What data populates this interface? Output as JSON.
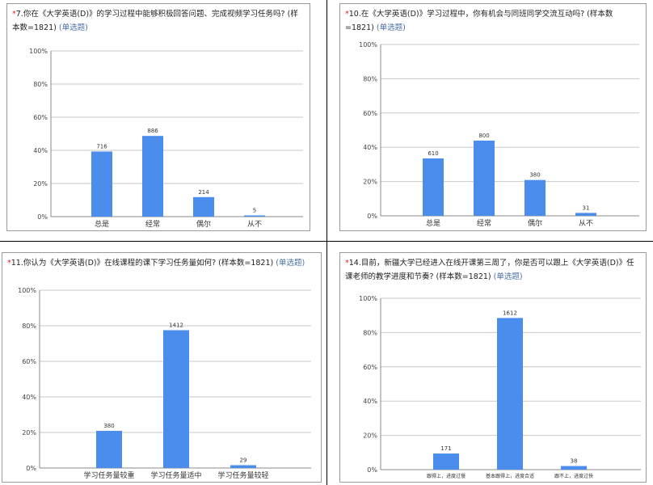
{
  "panels": [
    {
      "number": "7",
      "required": true,
      "question": ".你在《大学英语(D)》的学习过程中能够积极回答问题、完成视频学习任务吗?  (样本数=1821)",
      "type_label": "(单选题)"
    },
    {
      "number": "10",
      "required": true,
      "question": ".在《大学英语(D)》学习过程中，你有机会与同班同学交流互动吗?  (样本数=1821)",
      "type_label": "(单选题)"
    },
    {
      "number": "11",
      "required": true,
      "question": ".你认为《大学英语(D)》在线课程的课下学习任务量如何?  (样本数=1821)",
      "type_label": "(单选题)"
    },
    {
      "number": "14",
      "required": true,
      "question": ".目前，新疆大学已经进入在线开课第三周了，你是否可以跟上《大学英语(D)》任课老师的教学进度和节奏?  (样本数=1821)",
      "type_label": "(单选题)"
    }
  ],
  "chart_data": [
    {
      "type": "bar",
      "title": "",
      "categories": [
        "总是",
        "经常",
        "偶尔",
        "从不"
      ],
      "values": [
        39.3,
        48.7,
        11.8,
        0.3
      ],
      "data_labels": [
        "716",
        "886",
        "214",
        "5"
      ],
      "ylim": [
        0,
        100
      ],
      "yticks": [
        "0%",
        "20%",
        "40%",
        "60%",
        "80%",
        "100%"
      ],
      "grid": true,
      "bar_color": "#4a8ded"
    },
    {
      "type": "bar",
      "title": "",
      "categories": [
        "总是",
        "经常",
        "偶尔",
        "从不"
      ],
      "values": [
        33.5,
        43.9,
        20.9,
        1.7
      ],
      "data_labels": [
        "610",
        "800",
        "380",
        "31"
      ],
      "ylim": [
        0,
        100
      ],
      "yticks": [
        "0%",
        "20%",
        "40%",
        "60%",
        "80%",
        "100%"
      ],
      "grid": true,
      "bar_color": "#4a8ded"
    },
    {
      "type": "bar",
      "title": "",
      "categories": [
        "学习任务量较重",
        "学习任务量适中",
        "学习任务量较轻"
      ],
      "values": [
        20.9,
        77.5,
        1.6
      ],
      "data_labels": [
        "380",
        "1412",
        "29"
      ],
      "ylim": [
        0,
        100
      ],
      "yticks": [
        "0%",
        "20%",
        "40%",
        "60%",
        "80%",
        "100%"
      ],
      "grid": true,
      "bar_color": "#4a8ded"
    },
    {
      "type": "bar",
      "title": "",
      "categories": [
        "跟得上，进度过慢",
        "基本跟得上，进度合适",
        "跟不上，进度过快"
      ],
      "values": [
        9.4,
        88.5,
        2.1
      ],
      "data_labels": [
        "171",
        "1612",
        "38"
      ],
      "ylim": [
        0,
        100
      ],
      "yticks": [
        "0%",
        "20%",
        "40%",
        "60%",
        "80%",
        "100%"
      ],
      "grid": true,
      "bar_color": "#4a8ded"
    }
  ]
}
